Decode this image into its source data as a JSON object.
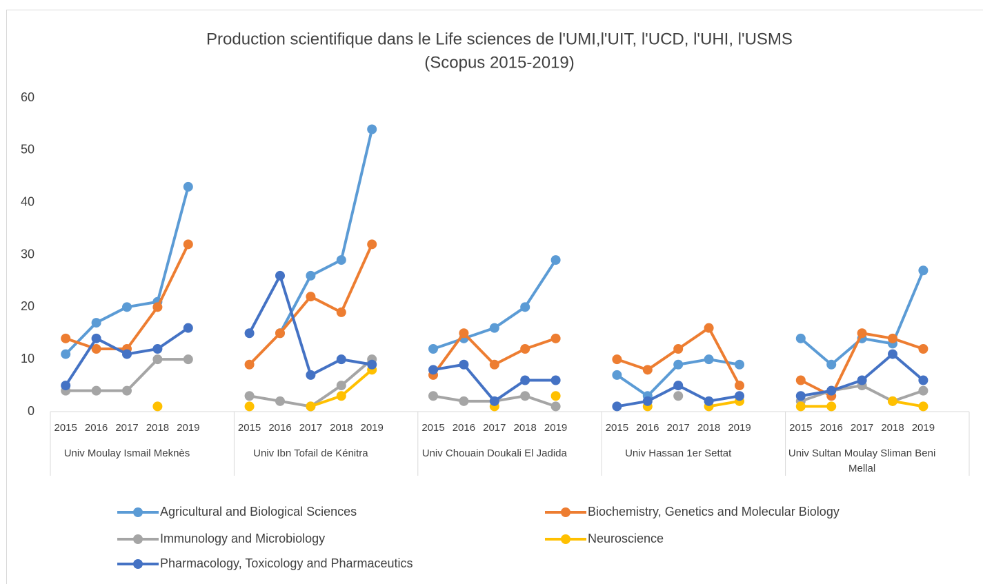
{
  "chart_data": {
    "type": "line",
    "title": [
      "Production scientifique dans le Life sciences de l'UMI,l'UIT, l'UCD, l'UHI, l'USMS",
      "(Scopus 2015-2019)"
    ],
    "groups": [
      "Univ Moulay Ismail  Meknès",
      "Univ Ibn Tofail de Kénitra",
      "Univ Chouain Doukali El Jadida",
      "Univ Hassan 1er Settat",
      "Univ Sultan Moulay Sliman Beni Mellal"
    ],
    "categories": [
      2015,
      2016,
      2017,
      2018,
      2019,
      null,
      2015,
      2016,
      2017,
      2018,
      2019,
      null,
      2015,
      2016,
      2017,
      2018,
      2019,
      null,
      2015,
      2016,
      2017,
      2018,
      2019,
      null,
      2015,
      2016,
      2017,
      2018,
      2019,
      null
    ],
    "series": [
      {
        "name": "Agricultural and Biological Sciences",
        "color": "#5b9bd5",
        "values": [
          11,
          17,
          20,
          21,
          43,
          null,
          null,
          15,
          26,
          29,
          54,
          null,
          12,
          14,
          16,
          20,
          29,
          null,
          7,
          3,
          9,
          10,
          9,
          null,
          14,
          9,
          14,
          13,
          27,
          null
        ]
      },
      {
        "name": "Biochemistry, Genetics and Molecular Biology",
        "color": "#ed7d31",
        "values": [
          14,
          12,
          12,
          20,
          32,
          null,
          9,
          15,
          22,
          19,
          32,
          null,
          7,
          15,
          9,
          12,
          14,
          null,
          10,
          8,
          12,
          16,
          5,
          null,
          6,
          3,
          15,
          14,
          12,
          null
        ]
      },
      {
        "name": "Immunology and Microbiology",
        "color": "#a5a5a5",
        "values": [
          4,
          4,
          4,
          10,
          10,
          null,
          3,
          2,
          1,
          5,
          10,
          null,
          3,
          2,
          2,
          3,
          1,
          null,
          null,
          null,
          3,
          null,
          null,
          null,
          2,
          4,
          5,
          2,
          4,
          null
        ]
      },
      {
        "name": "Neuroscience",
        "color": "#ffc000",
        "values": [
          null,
          null,
          null,
          1,
          null,
          null,
          1,
          null,
          1,
          3,
          8,
          null,
          null,
          null,
          1,
          null,
          3,
          null,
          null,
          1,
          null,
          1,
          2,
          null,
          1,
          1,
          null,
          2,
          1,
          null
        ]
      },
      {
        "name": "Pharmacology, Toxicology and Pharmaceutics",
        "color": "#4472c4",
        "values": [
          5,
          14,
          11,
          12,
          16,
          null,
          15,
          26,
          7,
          10,
          9,
          null,
          8,
          9,
          2,
          6,
          6,
          null,
          1,
          2,
          5,
          2,
          3,
          null,
          3,
          4,
          6,
          11,
          6,
          null
        ]
      }
    ],
    "ylim": [
      0,
      60
    ],
    "yticks": [
      0,
      10,
      20,
      30,
      40,
      50,
      60
    ],
    "grid": false
  }
}
